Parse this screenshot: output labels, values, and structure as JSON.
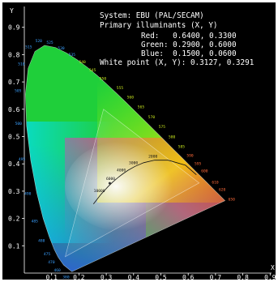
{
  "chart_data": {
    "type": "scatter",
    "title": "System: EBU (PAL/SECAM)",
    "xlabel": "X",
    "ylabel": "Y",
    "xlim": [
      0,
      0.9
    ],
    "ylim": [
      0,
      0.9
    ],
    "xticks": [
      "0.1",
      "0.2",
      "0.3",
      "0.4",
      "0.5",
      "0.6",
      "0.7",
      "0.8",
      "0.9"
    ],
    "yticks": [
      "0.1",
      "0.2",
      "0.3",
      "0.4",
      "0.5",
      "0.6",
      "0.7",
      "0.8",
      "0.9"
    ],
    "grid": false,
    "annotations": {
      "system": "System: EBU (PAL/SECAM)",
      "primaries_header": "Primary illuminants (X, Y)",
      "red": "Red:   0.6400, 0.3300",
      "green": "Green: 0.2900, 0.6000",
      "blue": "Blue:  0.1500, 0.0600",
      "white": "White point (X, Y): 0.3127, 0.3291"
    },
    "primaries": {
      "red": [
        0.64,
        0.33
      ],
      "green": [
        0.29,
        0.6
      ],
      "blue": [
        0.15,
        0.06
      ]
    },
    "white_point": [
      0.3127,
      0.3291
    ],
    "spectral_locus": [
      {
        "nm": "380",
        "x": 0.1741,
        "y": 0.005
      },
      {
        "nm": "460",
        "x": 0.144,
        "y": 0.0297
      },
      {
        "nm": "470",
        "x": 0.1241,
        "y": 0.0578
      },
      {
        "nm": "475",
        "x": 0.1096,
        "y": 0.0868
      },
      {
        "nm": "480",
        "x": 0.0913,
        "y": 0.1327
      },
      {
        "nm": "485",
        "x": 0.0687,
        "y": 0.2007
      },
      {
        "nm": "490",
        "x": 0.0454,
        "y": 0.295
      },
      {
        "nm": "495",
        "x": 0.0235,
        "y": 0.4127
      },
      {
        "nm": "500",
        "x": 0.0082,
        "y": 0.5384
      },
      {
        "nm": "505",
        "x": 0.0039,
        "y": 0.6548
      },
      {
        "nm": "510",
        "x": 0.0139,
        "y": 0.7502
      },
      {
        "nm": "515",
        "x": 0.0389,
        "y": 0.812
      },
      {
        "nm": "520",
        "x": 0.0743,
        "y": 0.8338
      },
      {
        "nm": "525",
        "x": 0.1142,
        "y": 0.8262
      },
      {
        "nm": "530",
        "x": 0.1547,
        "y": 0.8059
      },
      {
        "nm": "535",
        "x": 0.1929,
        "y": 0.7816
      },
      {
        "nm": "540",
        "x": 0.2296,
        "y": 0.7543
      },
      {
        "nm": "545",
        "x": 0.2658,
        "y": 0.7243
      },
      {
        "nm": "550",
        "x": 0.3016,
        "y": 0.6923
      },
      {
        "nm": "555",
        "x": 0.3373,
        "y": 0.6589
      },
      {
        "nm": "560",
        "x": 0.3731,
        "y": 0.6245
      },
      {
        "nm": "565",
        "x": 0.4087,
        "y": 0.5896
      },
      {
        "nm": "570",
        "x": 0.4441,
        "y": 0.5547
      },
      {
        "nm": "575",
        "x": 0.4788,
        "y": 0.5202
      },
      {
        "nm": "580",
        "x": 0.5125,
        "y": 0.4866
      },
      {
        "nm": "585",
        "x": 0.5448,
        "y": 0.4544
      },
      {
        "nm": "590",
        "x": 0.5752,
        "y": 0.4242
      },
      {
        "nm": "595",
        "x": 0.6029,
        "y": 0.3965
      },
      {
        "nm": "600",
        "x": 0.627,
        "y": 0.3725
      },
      {
        "nm": "610",
        "x": 0.6658,
        "y": 0.334
      },
      {
        "nm": "620",
        "x": 0.6915,
        "y": 0.3083
      },
      {
        "nm": "650",
        "x": 0.726,
        "y": 0.274
      },
      {
        "nm": "",
        "x": 0.7347,
        "y": 0.2653
      }
    ],
    "planckian_locus": [
      {
        "label": "",
        "x": 0.63,
        "y": 0.36
      },
      {
        "label": "",
        "x": 0.59,
        "y": 0.395
      },
      {
        "label": "",
        "x": 0.5267,
        "y": 0.4133
      },
      {
        "label": "2000",
        "x": 0.477,
        "y": 0.4137
      },
      {
        "label": "",
        "x": 0.4369,
        "y": 0.4041
      },
      {
        "label": "3000",
        "x": 0.4052,
        "y": 0.3907
      },
      {
        "label": "",
        "x": 0.3805,
        "y": 0.3768
      },
      {
        "label": "4000",
        "x": 0.3608,
        "y": 0.3636
      },
      {
        "label": "",
        "x": 0.3451,
        "y": 0.3516
      },
      {
        "label": "6000",
        "x": 0.3221,
        "y": 0.3318
      },
      {
        "label": "",
        "x": 0.3064,
        "y": 0.3166
      },
      {
        "label": "10000",
        "x": 0.2806,
        "y": 0.2883
      },
      {
        "label": "",
        "x": 0.253,
        "y": 0.253
      }
    ]
  }
}
